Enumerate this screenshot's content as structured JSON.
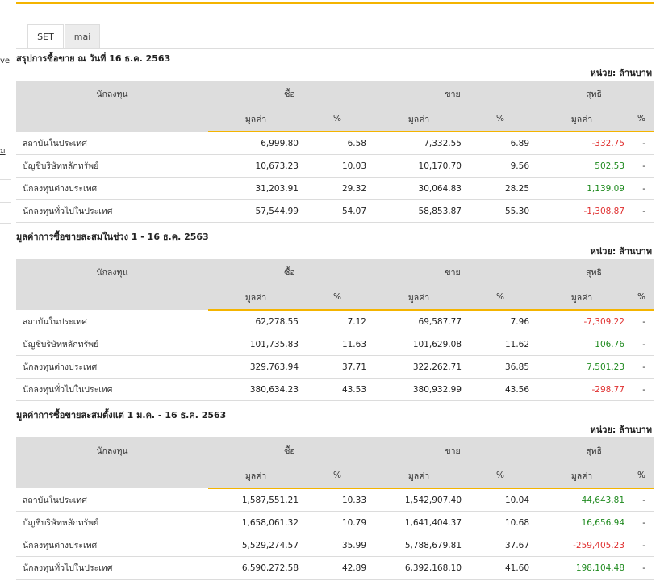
{
  "edge": {
    "text1": "ve",
    "text2": "ม"
  },
  "tabs": [
    {
      "label": "SET"
    },
    {
      "label": "mai"
    }
  ],
  "headers": {
    "investor": "นักลงทุน",
    "buy": "ซื้อ",
    "sell": "ขาย",
    "net": "สุทธิ",
    "value": "มูลค่า",
    "percent": "%"
  },
  "colors": {
    "accent": "#f4b400",
    "positive": "#1f8a1f",
    "negative": "#e03030"
  },
  "sections": [
    {
      "title": "สรุปการซื้อขาย ณ วันที่ 16 ธ.ค. 2563",
      "unit": "หน่วย: ล้านบาท",
      "rows": [
        {
          "name": "สถาบันในประเทศ",
          "buy_value": "6,999.80",
          "buy_pct": "6.58",
          "sell_value": "7,332.55",
          "sell_pct": "6.89",
          "net_value": "-332.75",
          "net_pct": "-"
        },
        {
          "name": "บัญชีบริษัทหลักทรัพย์",
          "buy_value": "10,673.23",
          "buy_pct": "10.03",
          "sell_value": "10,170.70",
          "sell_pct": "9.56",
          "net_value": "502.53",
          "net_pct": "-"
        },
        {
          "name": "นักลงทุนต่างประเทศ",
          "buy_value": "31,203.91",
          "buy_pct": "29.32",
          "sell_value": "30,064.83",
          "sell_pct": "28.25",
          "net_value": "1,139.09",
          "net_pct": "-"
        },
        {
          "name": "นักลงทุนทั่วไปในประเทศ",
          "buy_value": "57,544.99",
          "buy_pct": "54.07",
          "sell_value": "58,853.87",
          "sell_pct": "55.30",
          "net_value": "-1,308.87",
          "net_pct": "-"
        }
      ]
    },
    {
      "title": "มูลค่าการซื้อขายสะสมในช่วง 1 - 16 ธ.ค. 2563",
      "unit": "หน่วย: ล้านบาท",
      "rows": [
        {
          "name": "สถาบันในประเทศ",
          "buy_value": "62,278.55",
          "buy_pct": "7.12",
          "sell_value": "69,587.77",
          "sell_pct": "7.96",
          "net_value": "-7,309.22",
          "net_pct": "-"
        },
        {
          "name": "บัญชีบริษัทหลักทรัพย์",
          "buy_value": "101,735.83",
          "buy_pct": "11.63",
          "sell_value": "101,629.08",
          "sell_pct": "11.62",
          "net_value": "106.76",
          "net_pct": "-"
        },
        {
          "name": "นักลงทุนต่างประเทศ",
          "buy_value": "329,763.94",
          "buy_pct": "37.71",
          "sell_value": "322,262.71",
          "sell_pct": "36.85",
          "net_value": "7,501.23",
          "net_pct": "-"
        },
        {
          "name": "นักลงทุนทั่วไปในประเทศ",
          "buy_value": "380,634.23",
          "buy_pct": "43.53",
          "sell_value": "380,932.99",
          "sell_pct": "43.56",
          "net_value": "-298.77",
          "net_pct": "-"
        }
      ]
    },
    {
      "title": "มูลค่าการซื้อขายสะสมตั้งแต่ 1 ม.ค. - 16 ธ.ค. 2563",
      "unit": "หน่วย: ล้านบาท",
      "rows": [
        {
          "name": "สถาบันในประเทศ",
          "buy_value": "1,587,551.21",
          "buy_pct": "10.33",
          "sell_value": "1,542,907.40",
          "sell_pct": "10.04",
          "net_value": "44,643.81",
          "net_pct": "-"
        },
        {
          "name": "บัญชีบริษัทหลักทรัพย์",
          "buy_value": "1,658,061.32",
          "buy_pct": "10.79",
          "sell_value": "1,641,404.37",
          "sell_pct": "10.68",
          "net_value": "16,656.94",
          "net_pct": "-"
        },
        {
          "name": "นักลงทุนต่างประเทศ",
          "buy_value": "5,529,274.57",
          "buy_pct": "35.99",
          "sell_value": "5,788,679.81",
          "sell_pct": "37.67",
          "net_value": "-259,405.23",
          "net_pct": "-"
        },
        {
          "name": "นักลงทุนทั่วไปในประเทศ",
          "buy_value": "6,590,272.58",
          "buy_pct": "42.89",
          "sell_value": "6,392,168.10",
          "sell_pct": "41.60",
          "net_value": "198,104.48",
          "net_pct": "-"
        }
      ]
    }
  ]
}
